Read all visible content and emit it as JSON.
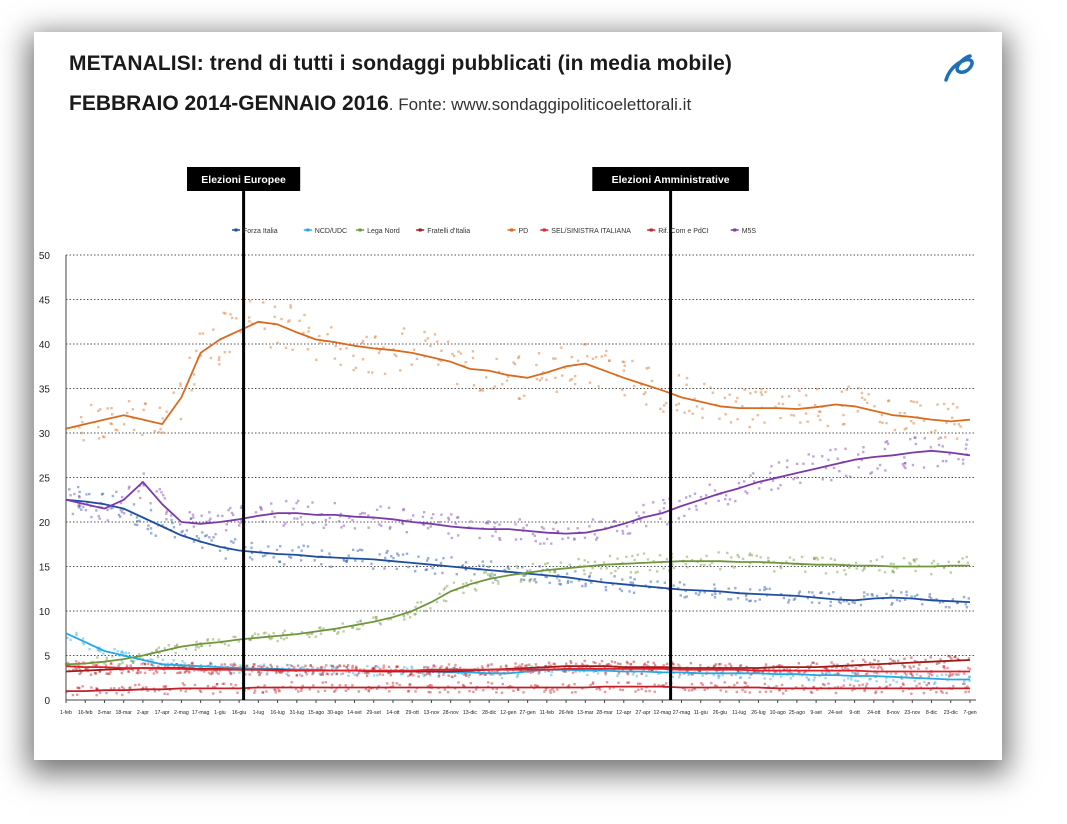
{
  "header": {
    "title_line1": "METANALISI: trend di tutti i sondaggi pubblicati (in media mobile)",
    "title_line2": "FEBBRAIO 2014-GENNAIO 2016",
    "source": ". Fonte: www.sondaggipoliticoelettorali.it"
  },
  "chart_data": {
    "type": "line",
    "ylim": [
      0,
      50
    ],
    "yticks": [
      0,
      5,
      10,
      15,
      20,
      25,
      30,
      35,
      40,
      45,
      50
    ],
    "grid": true,
    "legend_position": "top",
    "x_tick_labels": [
      "1-feb",
      "16-feb",
      "3-mar",
      "18-mar",
      "2-apr",
      "17-apr",
      "2-mag",
      "17-mag",
      "1-giu",
      "16-giu",
      "1-lug",
      "16-lug",
      "31-lug",
      "15-ago",
      "30-ago",
      "14-set",
      "29-set",
      "14-ott",
      "29-ott",
      "13-nov",
      "28-nov",
      "13-dic",
      "28-dic",
      "12-gen",
      "27-gen",
      "11-feb",
      "26-feb",
      "13-mar",
      "28-mar",
      "12-apr",
      "27-apr",
      "12-mag",
      "27-mag",
      "11-giu",
      "26-giu",
      "11-lug",
      "26-lug",
      "10-ago",
      "25-ago",
      "9-set",
      "24-set",
      "9-ott",
      "24-ott",
      "8-nov",
      "23-nov",
      "8-dic",
      "23-dic",
      "7-gen"
    ],
    "annotations": [
      {
        "label": "Elezioni Europee",
        "x": 0.16
      },
      {
        "label": "Elezioni Amministrative",
        "x": 0.66
      }
    ],
    "series": [
      {
        "name": "Forza Italia",
        "color": "#1f4e9f",
        "values": [
          22.5,
          22.3,
          22,
          21.5,
          20.5,
          19.5,
          18.5,
          17.8,
          17.2,
          16.8,
          16.6,
          16.4,
          16.3,
          16.1,
          16.0,
          15.9,
          15.8,
          15.6,
          15.4,
          15.2,
          15.0,
          14.8,
          14.6,
          14.4,
          14.2,
          14.0,
          13.8,
          13.5,
          13.2,
          13.0,
          12.8,
          12.6,
          12.4,
          12.3,
          12.2,
          12.0,
          11.9,
          11.8,
          11.7,
          11.5,
          11.3,
          11.2,
          11.4,
          11.5,
          11.4,
          11.2,
          11.1,
          11.0
        ]
      },
      {
        "name": "NCD/UDC",
        "color": "#28a8e0",
        "values": [
          7.5,
          6.5,
          5.5,
          5.0,
          4.5,
          4.0,
          3.9,
          3.8,
          3.7,
          3.6,
          3.5,
          3.5,
          3.4,
          3.4,
          3.3,
          3.3,
          3.3,
          3.2,
          3.2,
          3.2,
          3.1,
          3.1,
          3.0,
          3.0,
          3.2,
          3.4,
          3.4,
          3.3,
          3.3,
          3.2,
          3.2,
          3.1,
          3.1,
          3.0,
          3.0,
          3.0,
          3.0,
          2.9,
          2.9,
          2.8,
          2.8,
          2.7,
          2.7,
          2.6,
          2.5,
          2.4,
          2.3,
          2.3
        ]
      },
      {
        "name": "Lega Nord",
        "color": "#70963c",
        "values": [
          4.0,
          4.1,
          4.3,
          4.6,
          5.0,
          5.5,
          6.0,
          6.3,
          6.5,
          6.8,
          7.0,
          7.2,
          7.4,
          7.7,
          8.0,
          8.4,
          8.8,
          9.3,
          10.0,
          11.0,
          12.2,
          13.0,
          13.6,
          14.0,
          14.3,
          14.6,
          14.8,
          15.0,
          15.2,
          15.3,
          15.4,
          15.5,
          15.6,
          15.6,
          15.6,
          15.5,
          15.5,
          15.4,
          15.3,
          15.2,
          15.2,
          15.1,
          15.1,
          15.0,
          15.0,
          15.0,
          15.1,
          15.1
        ]
      },
      {
        "name": "Fratelli d'Italia",
        "color": "#a01a1a",
        "values": [
          3.2,
          3.3,
          3.4,
          3.5,
          3.6,
          3.6,
          3.6,
          3.5,
          3.5,
          3.4,
          3.4,
          3.4,
          3.3,
          3.3,
          3.3,
          3.3,
          3.2,
          3.2,
          3.2,
          3.2,
          3.2,
          3.3,
          3.4,
          3.5,
          3.6,
          3.7,
          3.8,
          3.8,
          3.8,
          3.7,
          3.7,
          3.7,
          3.6,
          3.6,
          3.6,
          3.6,
          3.6,
          3.7,
          3.7,
          3.7,
          3.8,
          3.9,
          4.0,
          4.1,
          4.2,
          4.3,
          4.4,
          4.5
        ]
      },
      {
        "name": "PD",
        "color": "#d86b1f",
        "values": [
          30.5,
          31,
          31.5,
          32,
          31.5,
          31,
          34,
          39,
          40.5,
          41.5,
          42.5,
          42.2,
          41.3,
          40.5,
          40.2,
          39.8,
          39.5,
          39.3,
          39.0,
          38.5,
          38.0,
          37.2,
          37.0,
          36.5,
          36.2,
          36.8,
          37.5,
          37.8,
          37.0,
          36.2,
          35.5,
          34.8,
          34.0,
          33.5,
          33.0,
          32.8,
          32.8,
          32.8,
          32.7,
          32.9,
          33.2,
          33.0,
          32.5,
          32.0,
          31.8,
          31.5,
          31.3,
          31.5
        ]
      },
      {
        "name": "SEL/SINISTRA ITALIANA",
        "color": "#e0202a",
        "values": [
          3.8,
          3.7,
          3.7,
          3.6,
          3.6,
          3.5,
          3.5,
          3.4,
          3.4,
          3.4,
          3.4,
          3.3,
          3.3,
          3.3,
          3.3,
          3.3,
          3.3,
          3.3,
          3.3,
          3.4,
          3.4,
          3.4,
          3.4,
          3.4,
          3.4,
          3.4,
          3.5,
          3.5,
          3.5,
          3.5,
          3.5,
          3.5,
          3.4,
          3.4,
          3.4,
          3.4,
          3.3,
          3.3,
          3.3,
          3.3,
          3.3,
          3.3,
          3.2,
          3.2,
          3.2,
          3.2,
          3.2,
          3.2
        ]
      },
      {
        "name": "Rif. Com e PdCI",
        "color": "#c0202a",
        "values": [
          1.0,
          1.0,
          1.1,
          1.1,
          1.2,
          1.2,
          1.3,
          1.3,
          1.3,
          1.3,
          1.4,
          1.4,
          1.4,
          1.4,
          1.4,
          1.4,
          1.4,
          1.4,
          1.4,
          1.4,
          1.4,
          1.4,
          1.4,
          1.4,
          1.4,
          1.4,
          1.4,
          1.4,
          1.5,
          1.5,
          1.5,
          1.5,
          1.4,
          1.4,
          1.4,
          1.4,
          1.4,
          1.3,
          1.3,
          1.3,
          1.3,
          1.3,
          1.3,
          1.3,
          1.3,
          1.3,
          1.3,
          1.3
        ]
      },
      {
        "name": "M5S",
        "color": "#7b3aa8",
        "values": [
          22.5,
          22.0,
          21.5,
          22.5,
          24.5,
          22.0,
          20.0,
          19.8,
          20.0,
          20.3,
          20.7,
          21.0,
          21.0,
          20.8,
          20.8,
          20.6,
          20.5,
          20.3,
          20.0,
          19.8,
          19.5,
          19.3,
          19.2,
          19.2,
          19.0,
          18.8,
          18.7,
          18.8,
          19.2,
          19.8,
          20.5,
          21.0,
          21.8,
          22.5,
          23.2,
          23.8,
          24.5,
          25.0,
          25.5,
          26.0,
          26.5,
          27.0,
          27.3,
          27.5,
          27.8,
          28.0,
          27.8,
          27.5
        ]
      }
    ]
  }
}
